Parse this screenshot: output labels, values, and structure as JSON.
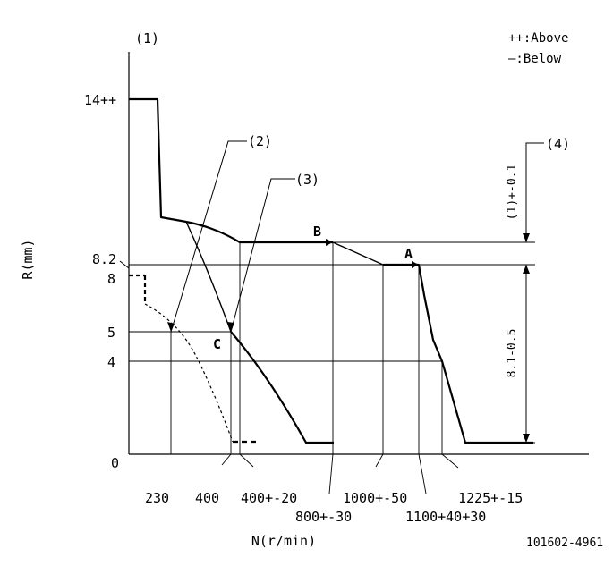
{
  "figure_id": "101602-4961",
  "axis": {
    "y_label": "R(mm)",
    "x_label": "N(r/min)"
  },
  "legend": {
    "above": "++:Above",
    "below": "—:Below"
  },
  "refs": {
    "r1": "(1)",
    "r2": "(2)",
    "r3": "(3)",
    "r4": "(4)"
  },
  "y_ticks": [
    "14++",
    "8.2",
    "8",
    "5",
    "4",
    "0"
  ],
  "x_ticks": [
    "230",
    "400",
    "400+-20",
    "800+-30",
    "1000+-50",
    "1100+40+30",
    "1225+-15"
  ],
  "points": {
    "a": "A",
    "b": "B",
    "c": "C"
  },
  "dims": {
    "upper": "(1)+-0.1",
    "lower": "8.1-0.5"
  },
  "colors": {
    "line": "#000000",
    "background": "#ffffff"
  }
}
